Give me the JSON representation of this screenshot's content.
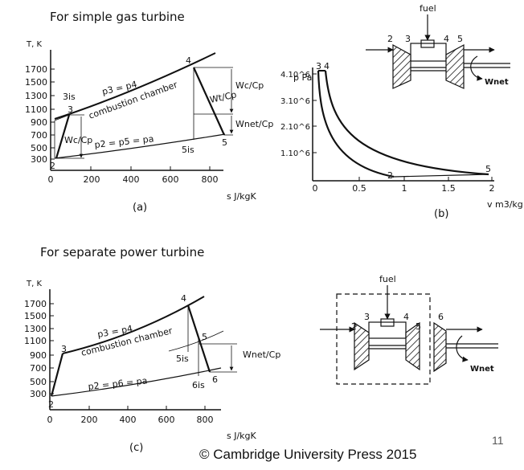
{
  "headings": {
    "simple": "For simple gas turbine",
    "separate": "For separate power turbine"
  },
  "ts_a": {
    "ylabel": "T, K",
    "xlabel": "s  J/kgK",
    "yticks": [
      "1700",
      "1500",
      "1300",
      "1100",
      "900",
      "700",
      "500",
      "300"
    ],
    "xticks": [
      "0",
      "200",
      "400",
      "600",
      "800"
    ],
    "points": [
      "2",
      "3",
      "4",
      "5",
      "3is",
      "5is"
    ],
    "labels": {
      "p3p4": "p3 = p4",
      "combustion": "combustion chamber",
      "p2p5": "p2 = p5 = pa",
      "wc": "Wc/Cp",
      "wc_right": "Wc/Cp",
      "wt": "Wt/Cp",
      "wnet": "Wnet/Cp"
    },
    "caption": "(a)"
  },
  "pv_b": {
    "ylabel": "p Pa",
    "xlabel": "v  m3/kg",
    "yticks": [
      "4.10^6",
      "3.10^6",
      "2.10^6",
      "1.10^6"
    ],
    "xticks": [
      "0",
      "0.5",
      "1",
      "1.5",
      "2"
    ],
    "points": [
      "3",
      "4",
      "2",
      "5"
    ],
    "caption": "(b)"
  },
  "engine_b": {
    "fuel": "fuel",
    "stations": [
      "2",
      "3",
      "4",
      "5"
    ],
    "wnet": "Wnet"
  },
  "ts_c": {
    "ylabel": "T, K",
    "xlabel": "s  J/kgK",
    "yticks": [
      "1700",
      "1500",
      "1300",
      "1100",
      "900",
      "700",
      "500",
      "300"
    ],
    "xticks": [
      "0",
      "200",
      "400",
      "600",
      "800"
    ],
    "points": [
      "2",
      "3",
      "4",
      "5",
      "6",
      "5is",
      "6is"
    ],
    "labels": {
      "p3p4": "p3 = p4",
      "combustion": "combustion chamber",
      "p2p6": "p2 = p6 = pa",
      "wnet": "Wnet/Cp"
    },
    "caption": "(c)"
  },
  "engine_c": {
    "fuel": "fuel",
    "stations": [
      "2",
      "3",
      "4",
      "5",
      "6"
    ],
    "wnet": "Wnet"
  },
  "footer": "© Cambridge University Press 2015",
  "page_number": "11"
}
